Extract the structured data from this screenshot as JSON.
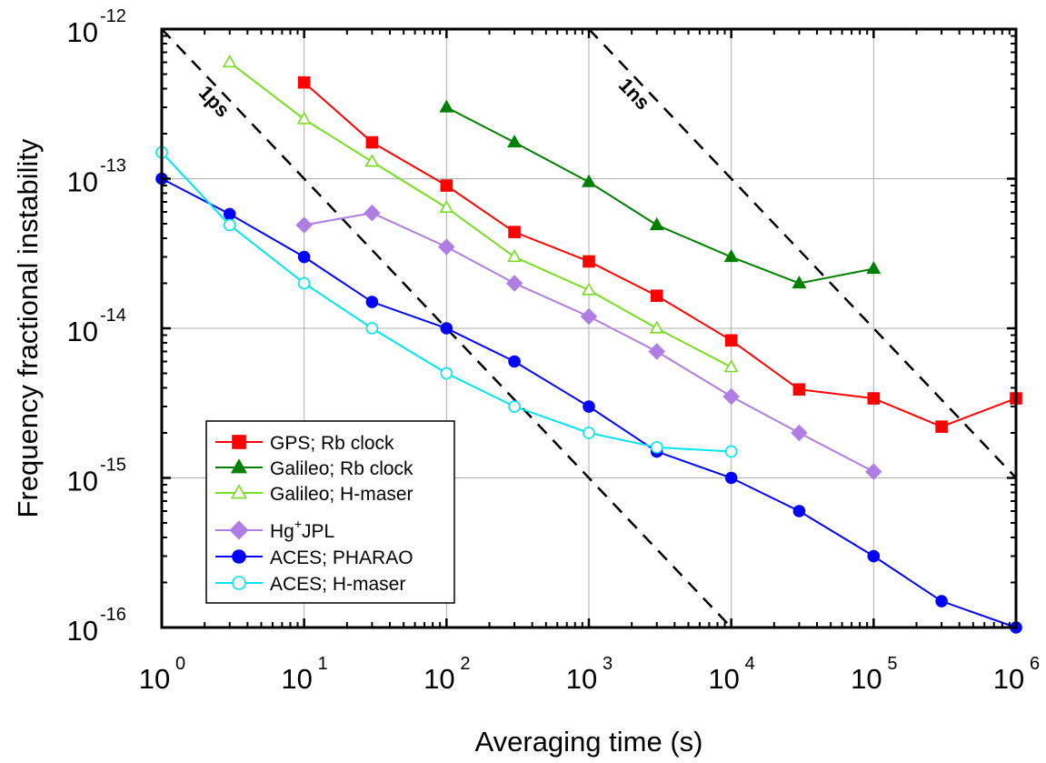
{
  "chart_data": {
    "type": "line",
    "xlabel": "Averaging time (s)",
    "ylabel": "Frequency fractional instability",
    "x_scale": "log",
    "y_scale": "log",
    "xlim": [
      1,
      1000000
    ],
    "ylim": [
      1e-16,
      1e-12
    ],
    "x_ticks": [
      {
        "base": "10",
        "exp": "0",
        "value": 1
      },
      {
        "base": "10",
        "exp": "1",
        "value": 10
      },
      {
        "base": "10",
        "exp": "2",
        "value": 100
      },
      {
        "base": "10",
        "exp": "3",
        "value": 1000
      },
      {
        "base": "10",
        "exp": "4",
        "value": 10000
      },
      {
        "base": "10",
        "exp": "5",
        "value": 100000
      },
      {
        "base": "10",
        "exp": "6",
        "value": 1000000
      }
    ],
    "y_ticks": [
      {
        "base": "10",
        "exp": "-16",
        "value": 1e-16
      },
      {
        "base": "10",
        "exp": "-15",
        "value": 1e-15
      },
      {
        "base": "10",
        "exp": "-14",
        "value": 1e-14
      },
      {
        "base": "10",
        "exp": "-13",
        "value": 1e-13
      },
      {
        "base": "10",
        "exp": "-12",
        "value": 1e-12
      }
    ],
    "grid": true,
    "legend_position": "bottom-left",
    "series": [
      {
        "name": "GPS; Rb clock",
        "color": "#ff0000",
        "marker": "square",
        "filled": true,
        "x": [
          10,
          30,
          100,
          300,
          1000,
          3000,
          10000,
          30000,
          100000,
          300000,
          1000000
        ],
        "y": [
          4.4e-13,
          1.75e-13,
          9e-14,
          4.4e-14,
          2.8e-14,
          1.65e-14,
          8.3e-15,
          3.9e-15,
          3.4e-15,
          2.2e-15,
          3.4e-15
        ]
      },
      {
        "name": "Galileo; Rb clock",
        "color": "#008000",
        "marker": "triangle",
        "filled": true,
        "x": [
          100,
          300,
          1000,
          3000,
          10000,
          30000,
          100000
        ],
        "y": [
          3e-13,
          1.75e-13,
          9.5e-14,
          4.9e-14,
          3e-14,
          2e-14,
          2.5e-14
        ]
      },
      {
        "name": "Galileo; H-maser",
        "color": "#77dd22",
        "marker": "triangle",
        "filled": false,
        "x": [
          3,
          10,
          30,
          100,
          300,
          1000,
          3000,
          10000
        ],
        "y": [
          6e-13,
          2.5e-13,
          1.3e-13,
          6.4e-14,
          3e-14,
          1.8e-14,
          1e-14,
          5.5e-15
        ]
      },
      {
        "name": "Hg",
        "name_sup": "+",
        "name_suffix": "JPL",
        "color": "#b07de3",
        "marker": "diamond",
        "filled": true,
        "x": [
          10,
          30,
          100,
          300,
          1000,
          3000,
          10000,
          30000,
          100000
        ],
        "y": [
          4.9e-14,
          5.9e-14,
          3.5e-14,
          2e-14,
          1.2e-14,
          7e-15,
          3.5e-15,
          2e-15,
          1.1e-15
        ]
      },
      {
        "name": "ACES; PHARAO",
        "color": "#0000ff",
        "marker": "circle",
        "filled": true,
        "x": [
          1,
          3,
          10,
          30,
          100,
          300,
          1000,
          3000,
          10000,
          30000,
          100000,
          300000,
          1000000
        ],
        "y": [
          1e-13,
          5.8e-14,
          3e-14,
          1.5e-14,
          1e-14,
          6e-15,
          3e-15,
          1.5e-15,
          1e-15,
          6e-16,
          3e-16,
          1.5e-16,
          1e-16
        ]
      },
      {
        "name": "ACES; H-maser",
        "color": "#00e5ee",
        "marker": "circle",
        "filled": false,
        "x": [
          1,
          3,
          10,
          30,
          100,
          300,
          1000,
          3000,
          10000
        ],
        "y": [
          1.5e-13,
          4.9e-14,
          2e-14,
          1e-14,
          5e-15,
          3e-15,
          2e-15,
          1.6e-15,
          1.5e-15
        ]
      }
    ],
    "reference_lines": [
      {
        "label": "1ps",
        "x": [
          1,
          10000
        ],
        "y": [
          1e-12,
          1e-16
        ]
      },
      {
        "label": "1ns",
        "x": [
          1000,
          1000000
        ],
        "y": [
          1e-12,
          1e-15
        ]
      }
    ],
    "legend_groups": [
      [
        0,
        1,
        2
      ],
      [
        3,
        4,
        5
      ]
    ]
  }
}
